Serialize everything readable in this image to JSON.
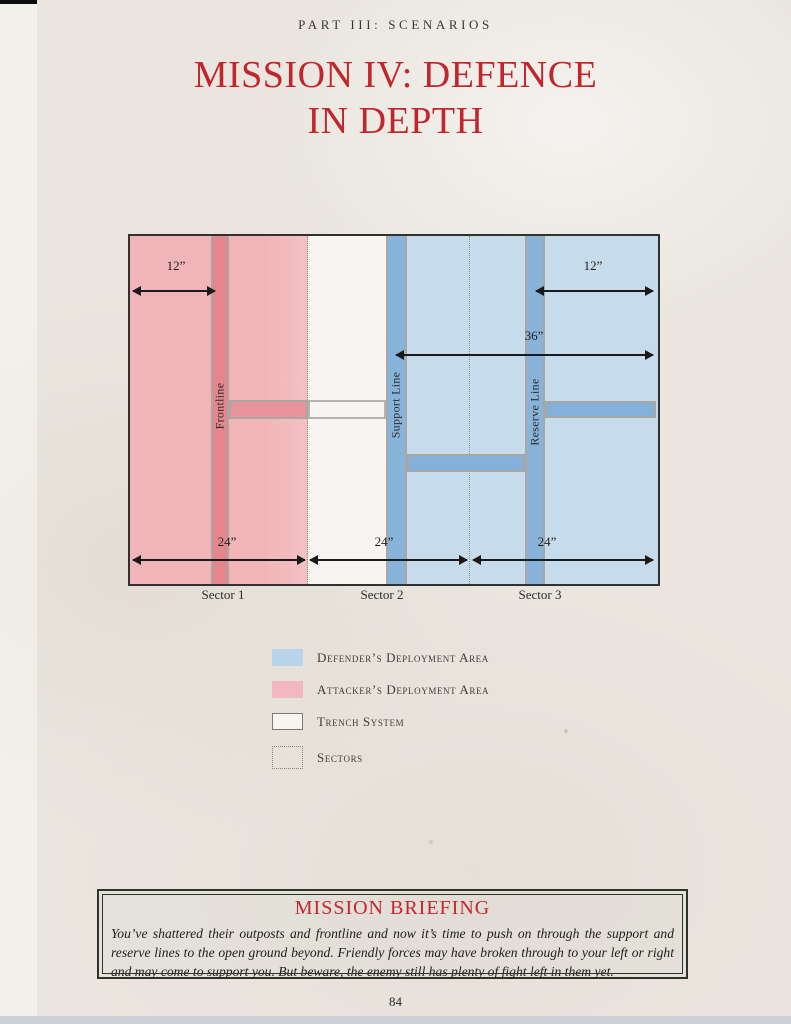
{
  "header": {
    "kicker": "PART III: SCENARIOS",
    "title_line1": "MISSION IV: DEFENCE",
    "title_line2": "IN DEPTH"
  },
  "diagram": {
    "line_labels": {
      "frontline": "Frontline",
      "support": "Support Line",
      "reserve": "Reserve Line"
    },
    "measurements": {
      "attacker_width": "12”",
      "defender_right_width": "12”",
      "defender_depth": "36”",
      "sector1_width": "24”",
      "sector2_width": "24”",
      "sector3_width": "24”"
    },
    "sector_labels": [
      "Sector 1",
      "Sector 2",
      "Sector 3"
    ]
  },
  "legend": {
    "items": [
      {
        "label": "Defender’s Deployment Area",
        "swatch_color": "#b9d4ea",
        "swatch_style": "solid-fill"
      },
      {
        "label": "Attacker’s Deployment Area",
        "swatch_color": "#f3b8bf",
        "swatch_style": "solid-fill"
      },
      {
        "label": "Trench System",
        "swatch_color": "#f7f5f1",
        "swatch_style": "outlined"
      },
      {
        "label": "Sectors",
        "swatch_color": "",
        "swatch_style": "dotted-outline"
      }
    ]
  },
  "briefing": {
    "heading": "MISSION BRIEFING",
    "body": "You’ve shattered their outposts and frontline and now it’s time to push on through the support and reserve lines to the open ground beyond. Friendly forces may have broken through to your left or right and may come to support you. But beware, the enemy still has plenty of fight left in them yet."
  },
  "footer": {
    "page_number": "84"
  },
  "colors": {
    "accent_red": "#c0262b",
    "attacker_light": "#f1b5b9",
    "attacker_dark": "#e5868f",
    "defender_light": "#c6dbec",
    "defender_dark": "#85b2da",
    "bar_border": "#a9a7a3",
    "map_border": "#33312d",
    "briefing_border": "#2f3429",
    "page_background": "#eae6df"
  }
}
